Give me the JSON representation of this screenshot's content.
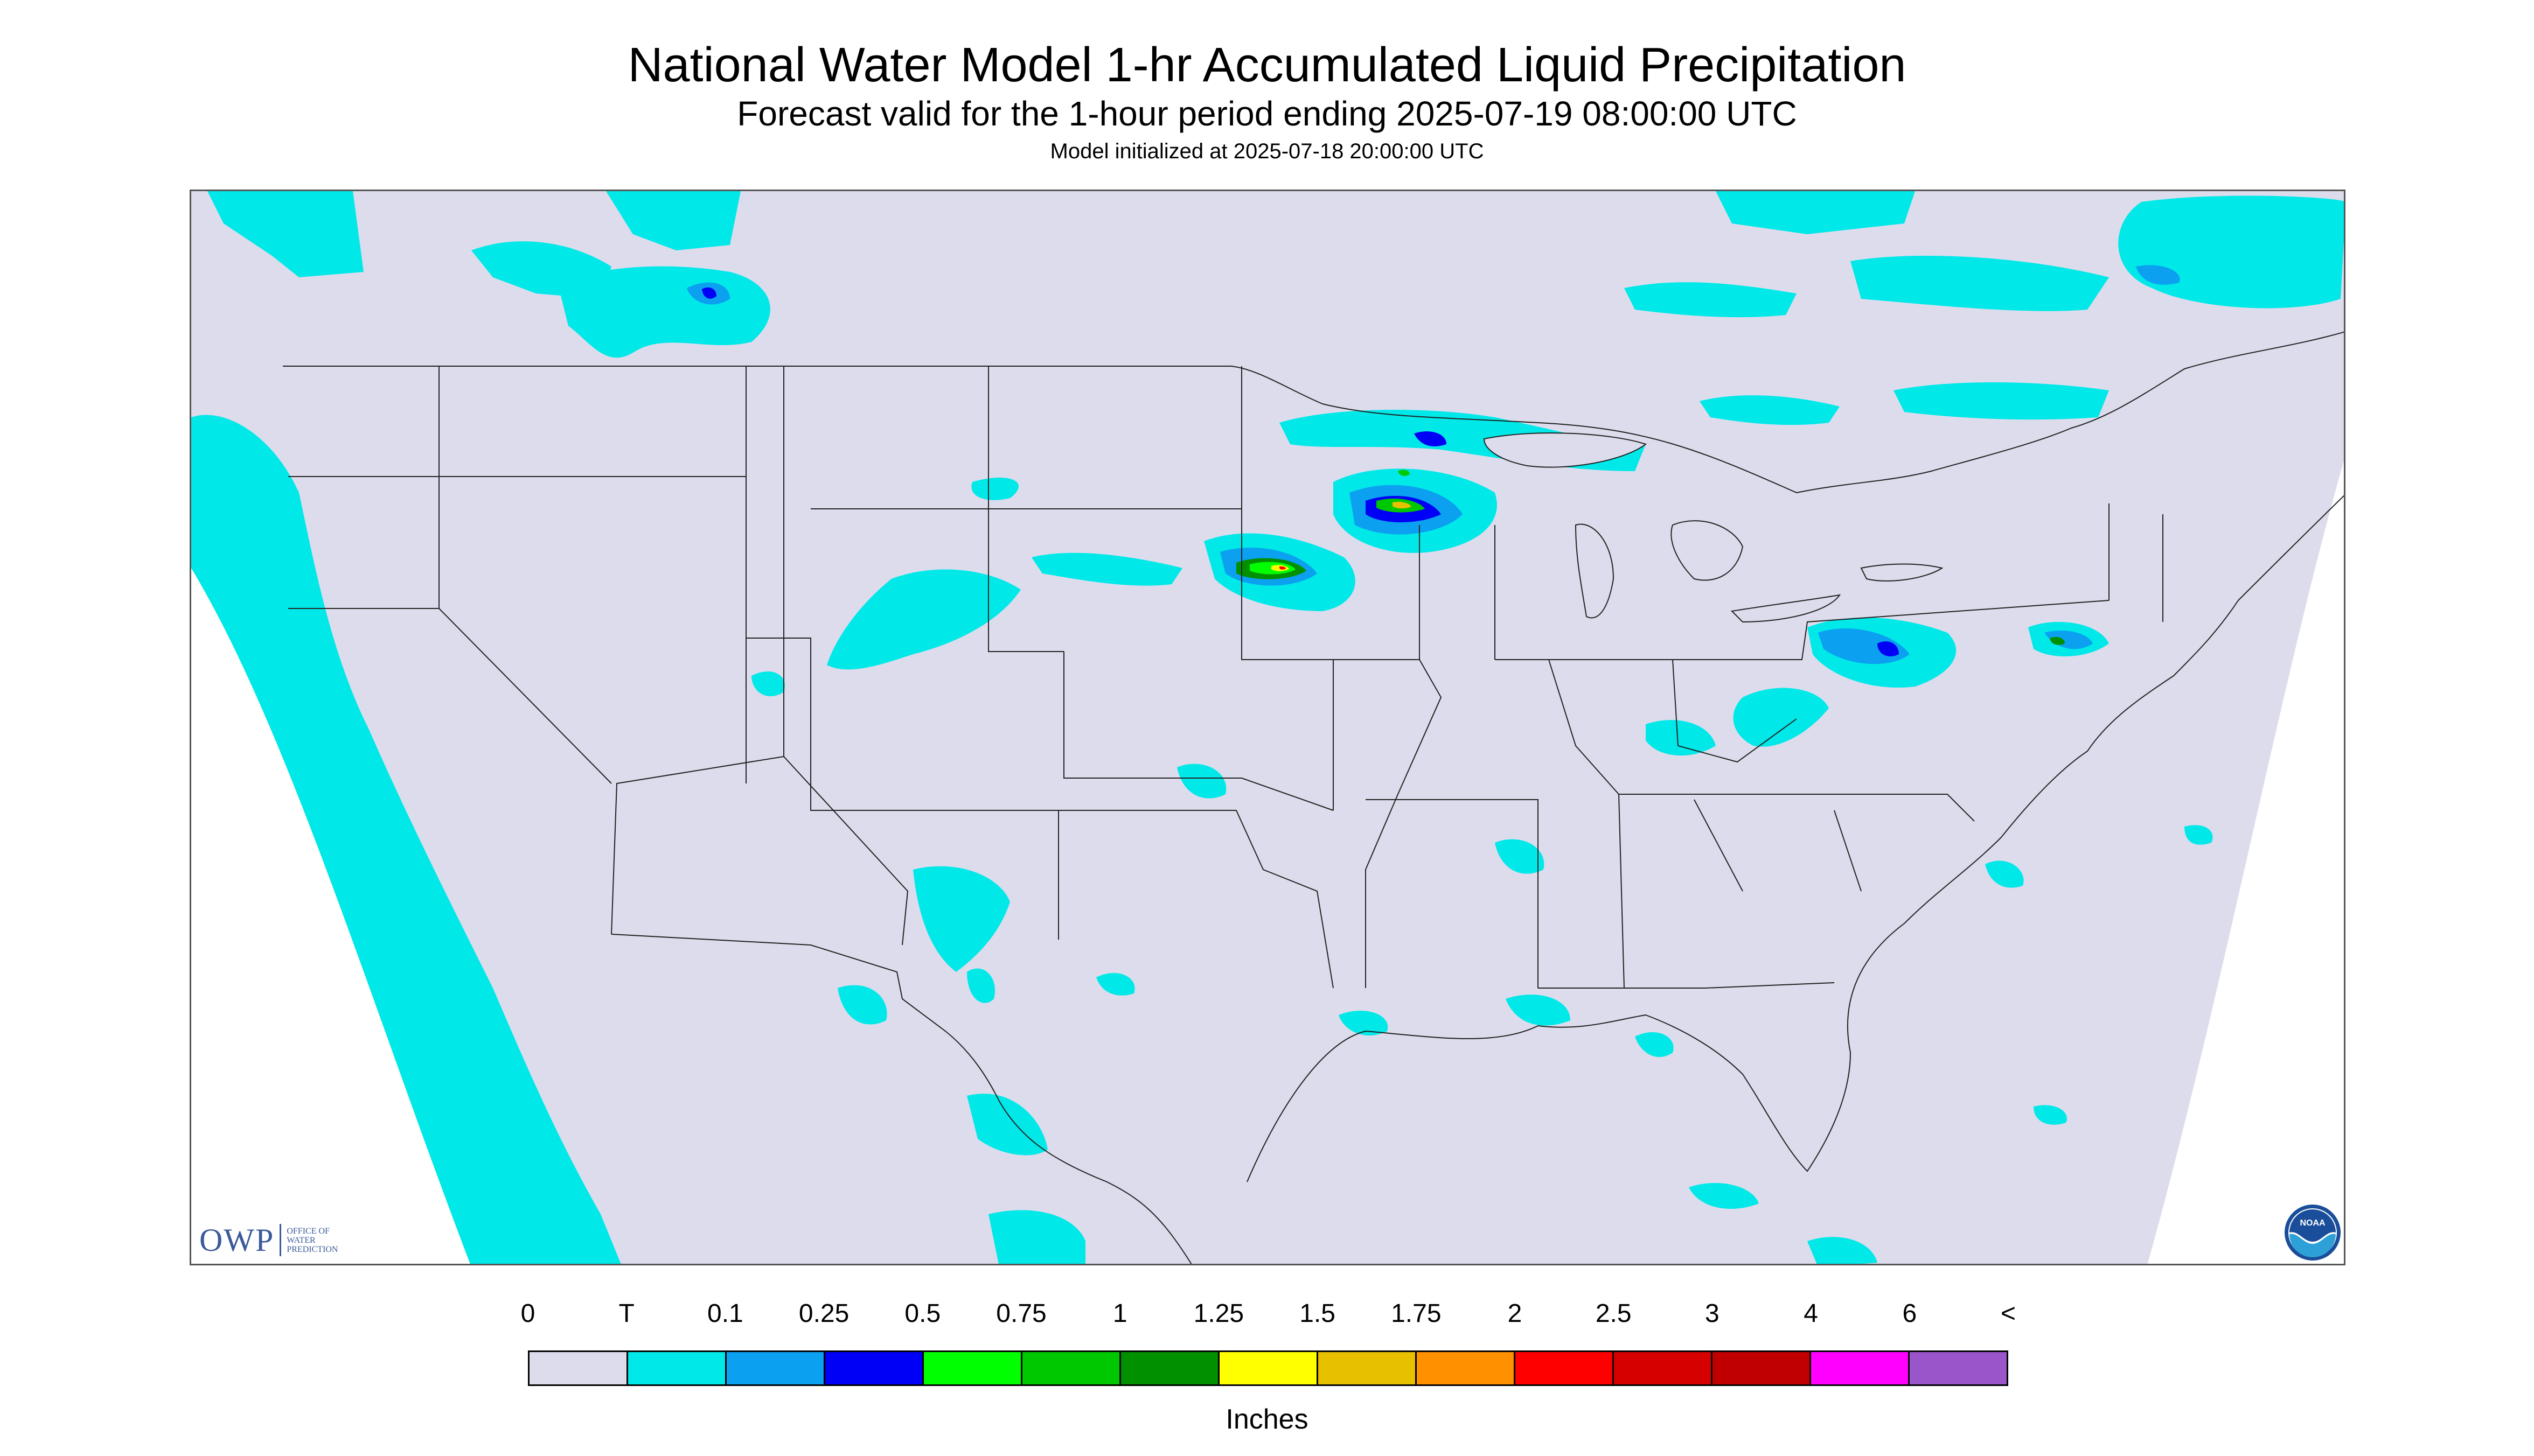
{
  "header": {
    "title": "National Water Model 1-hr Accumulated Liquid Precipitation",
    "subtitle": "Forecast valid for the 1-hour period ending 2025-07-19 08:00:00 UTC",
    "init": "Model initialized at 2025-07-18 20:00:00 UTC"
  },
  "map": {
    "background_color": "#dcdcec",
    "line_color": "#222222",
    "offmap_color": "#ffffff"
  },
  "logos": {
    "owp": {
      "letters": "OWP",
      "line1": "OFFICE OF",
      "line2": "WATER",
      "line3": "PREDICTION"
    },
    "noaa": {
      "text": "NOAA"
    }
  },
  "legend": {
    "labels": [
      "0",
      "T",
      "0.1",
      "0.25",
      "0.5",
      "0.75",
      "1",
      "1.25",
      "1.5",
      "1.75",
      "2",
      "2.5",
      "3",
      "4",
      "6",
      "<"
    ],
    "colors": [
      "#dcdcec",
      "#00e8e8",
      "#0ba0f0",
      "#0000f6",
      "#00ff00",
      "#00c800",
      "#009000",
      "#ffff00",
      "#e7c000",
      "#ff9000",
      "#ff0000",
      "#d60000",
      "#c00000",
      "#ff00ff",
      "#9955c9"
    ],
    "units": "Inches"
  }
}
